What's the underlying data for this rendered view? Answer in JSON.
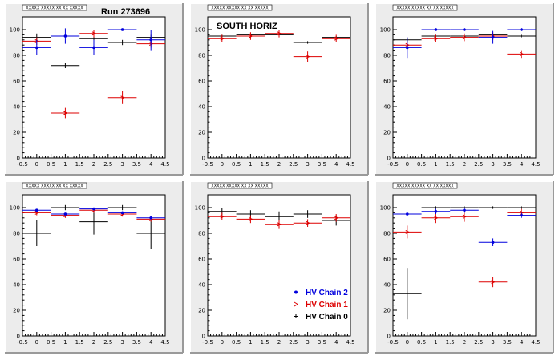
{
  "figure": {
    "run_label": "Run 273696",
    "region_label": "SOUTH HORIZ",
    "colors": {
      "chain2": "#0000dd",
      "chain1": "#dd0000",
      "chain0": "#000000",
      "panel_bg": "#ececec",
      "frame_bg": "#ffffff"
    },
    "legend": [
      {
        "label": "HV Chain 2",
        "color": "#0000dd",
        "marker": "dot"
      },
      {
        "label": "HV Chain 1",
        "color": "#dd0000",
        "marker": "arrow"
      },
      {
        "label": "HV Chain 0",
        "color": "#000000",
        "marker": "cross"
      }
    ]
  },
  "chart_data": [
    {
      "type": "scatter",
      "panel_title": "XXXXX XXXXX XX XX XXXXX",
      "xlim": [
        -0.5,
        4.5
      ],
      "ylim": [
        0,
        110
      ],
      "xticks": [
        -0.5,
        0,
        0.5,
        1,
        1.5,
        2,
        2.5,
        3,
        3.5,
        4,
        4.5
      ],
      "yticks": [
        0,
        20,
        40,
        60,
        80,
        100
      ],
      "series": [
        {
          "name": "HV Chain 2",
          "x": [
            0,
            1,
            2,
            3,
            4
          ],
          "y": [
            86,
            95,
            86,
            100,
            92
          ],
          "yerr": [
            6,
            6,
            6,
            1,
            8
          ]
        },
        {
          "name": "HV Chain 1",
          "x": [
            0,
            1,
            2,
            3,
            4
          ],
          "y": [
            91,
            35,
            97,
            47,
            89
          ],
          "yerr": [
            3,
            4,
            3,
            5,
            3
          ]
        },
        {
          "name": "HV Chain 0",
          "x": [
            0,
            1,
            2,
            3,
            4
          ],
          "y": [
            94,
            72,
            93,
            90,
            94
          ],
          "yerr": [
            3,
            2,
            2,
            2,
            2
          ]
        }
      ]
    },
    {
      "type": "scatter",
      "panel_title": "XXXXX XXXXX XX XX XXXXX",
      "xlim": [
        -0.5,
        4.5
      ],
      "ylim": [
        0,
        110
      ],
      "xticks": [
        -0.5,
        0,
        0.5,
        1,
        1.5,
        2,
        2.5,
        3,
        3.5,
        4,
        4.5
      ],
      "yticks": [
        0,
        20,
        40,
        60,
        80,
        100
      ],
      "series": [
        {
          "name": "HV Chain 2",
          "x": [],
          "y": [],
          "yerr": []
        },
        {
          "name": "HV Chain 1",
          "x": [
            0,
            1,
            2,
            3,
            4
          ],
          "y": [
            93,
            95,
            97,
            79,
            93
          ],
          "yerr": [
            3,
            3,
            3,
            4,
            3
          ]
        },
        {
          "name": "HV Chain 0",
          "x": [
            0,
            1,
            2,
            3,
            4
          ],
          "y": [
            95,
            96,
            96,
            90,
            94
          ],
          "yerr": [
            1,
            1,
            1,
            1,
            1
          ]
        }
      ]
    },
    {
      "type": "scatter",
      "panel_title": "XXXXX XXXXX XX XX XXXXX",
      "xlim": [
        -0.5,
        4.5
      ],
      "ylim": [
        0,
        110
      ],
      "xticks": [
        -0.5,
        0,
        0.5,
        1,
        1.5,
        2,
        2.5,
        3,
        3.5,
        4,
        4.5
      ],
      "yticks": [
        0,
        20,
        40,
        60,
        80,
        100
      ],
      "series": [
        {
          "name": "HV Chain 2",
          "x": [
            0,
            1,
            2,
            3,
            4
          ],
          "y": [
            86,
            100,
            100,
            94,
            100
          ],
          "yerr": [
            8,
            1,
            1,
            5,
            1
          ]
        },
        {
          "name": "HV Chain 1",
          "x": [
            0,
            1,
            2,
            3,
            4
          ],
          "y": [
            88,
            93,
            94,
            95,
            81
          ],
          "yerr": [
            3,
            3,
            3,
            3,
            3
          ]
        },
        {
          "name": "HV Chain 0",
          "x": [
            0,
            1,
            2,
            3,
            4
          ],
          "y": [
            92,
            95,
            95,
            96,
            95
          ],
          "yerr": [
            2,
            1,
            1,
            1,
            1
          ]
        }
      ]
    },
    {
      "type": "scatter",
      "panel_title": "XXXXX XXXXX XX XX XXXXX",
      "xlim": [
        -0.5,
        4.5
      ],
      "ylim": [
        0,
        110
      ],
      "xticks": [
        -0.5,
        0,
        0.5,
        1,
        1.5,
        2,
        2.5,
        3,
        3.5,
        4,
        4.5
      ],
      "yticks": [
        0,
        20,
        40,
        60,
        80,
        100
      ],
      "series": [
        {
          "name": "HV Chain 2",
          "x": [
            0,
            1,
            2,
            3,
            4
          ],
          "y": [
            98,
            95,
            99,
            96,
            92
          ],
          "yerr": [
            1,
            1,
            1,
            1,
            1
          ]
        },
        {
          "name": "HV Chain 1",
          "x": [
            0,
            1,
            2,
            3,
            4
          ],
          "y": [
            96,
            94,
            98,
            95,
            91
          ],
          "yerr": [
            2,
            2,
            2,
            2,
            2
          ]
        },
        {
          "name": "HV Chain 0",
          "x": [
            0,
            1,
            2,
            3,
            4
          ],
          "y": [
            80,
            100,
            89,
            100,
            80
          ],
          "yerr": [
            10,
            2,
            10,
            2,
            12
          ]
        }
      ]
    },
    {
      "type": "scatter",
      "panel_title": "XXXXX XXXXX XX XX XXXXX",
      "xlim": [
        -0.5,
        4.5
      ],
      "ylim": [
        0,
        110
      ],
      "xticks": [
        -0.5,
        0,
        0.5,
        1,
        1.5,
        2,
        2.5,
        3,
        3.5,
        4,
        4.5
      ],
      "yticks": [
        0,
        20,
        40,
        60,
        80,
        100
      ],
      "series": [
        {
          "name": "HV Chain 2",
          "x": [],
          "y": [],
          "yerr": []
        },
        {
          "name": "HV Chain 1",
          "x": [
            0,
            1,
            2,
            3,
            4
          ],
          "y": [
            93,
            91,
            87,
            88,
            92
          ],
          "yerr": [
            3,
            3,
            3,
            3,
            3
          ]
        },
        {
          "name": "HV Chain 0",
          "x": [
            0,
            1,
            2,
            3,
            4
          ],
          "y": [
            97,
            95,
            93,
            95,
            90
          ],
          "yerr": [
            3,
            3,
            4,
            3,
            4
          ]
        }
      ]
    },
    {
      "type": "scatter",
      "panel_title": "XXXXX XXXXX XX XX XXXXX",
      "xlim": [
        -0.5,
        4.5
      ],
      "ylim": [
        0,
        110
      ],
      "xticks": [
        -0.5,
        0,
        0.5,
        1,
        1.5,
        2,
        2.5,
        3,
        3.5,
        4,
        4.5
      ],
      "yticks": [
        0,
        20,
        40,
        60,
        80,
        100
      ],
      "series": [
        {
          "name": "HV Chain 2",
          "x": [
            0,
            1,
            2,
            3,
            4
          ],
          "y": [
            95,
            97,
            98,
            73,
            94
          ],
          "yerr": [
            1,
            2,
            2,
            3,
            2
          ]
        },
        {
          "name": "HV Chain 1",
          "x": [
            0,
            1,
            2,
            3,
            4
          ],
          "y": [
            81,
            92,
            93,
            42,
            96
          ],
          "yerr": [
            5,
            4,
            4,
            4,
            3
          ]
        },
        {
          "name": "HV Chain 0",
          "x": [
            0,
            1,
            2,
            3,
            4
          ],
          "y": [
            33,
            100,
            100,
            100,
            100
          ],
          "yerr": [
            20,
            1,
            1,
            1,
            1
          ]
        }
      ]
    }
  ]
}
